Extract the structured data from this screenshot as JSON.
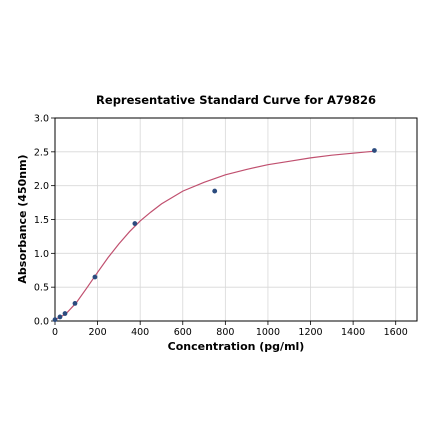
{
  "chart_data": {
    "type": "scatter",
    "title": "Representative Standard Curve for A79826",
    "xlabel": "Concentration (pg/ml)",
    "ylabel": "Absorbance (450nm)",
    "xlim": [
      0,
      1700
    ],
    "ylim": [
      0,
      3.0
    ],
    "xticks": [
      0,
      200,
      400,
      600,
      800,
      1000,
      1200,
      1400,
      1600
    ],
    "yticks": [
      0.0,
      0.5,
      1.0,
      1.5,
      2.0,
      2.5,
      3.0
    ],
    "xtick_labels": [
      "0",
      "200",
      "400",
      "600",
      "800",
      "1000",
      "1200",
      "1400",
      "1600"
    ],
    "ytick_labels": [
      "0.0",
      "0.5",
      "1.0",
      "1.5",
      "2.0",
      "2.5",
      "3.0"
    ],
    "grid": true,
    "series": [
      {
        "kind": "points",
        "color": "#2b4b7e",
        "x": [
          0,
          23.4,
          46.9,
          93.8,
          187.5,
          375,
          750,
          1500
        ],
        "y": [
          0.02,
          0.06,
          0.11,
          0.26,
          0.65,
          1.44,
          1.92,
          2.52
        ]
      },
      {
        "kind": "fit-curve",
        "color": "#c0506f",
        "x": [
          0,
          50,
          100,
          150,
          200,
          250,
          300,
          350,
          400,
          450,
          500,
          600,
          700,
          800,
          900,
          1000,
          1100,
          1200,
          1300,
          1400,
          1500
        ],
        "y": [
          0.02,
          0.1,
          0.27,
          0.49,
          0.72,
          0.94,
          1.14,
          1.32,
          1.48,
          1.61,
          1.73,
          1.92,
          2.05,
          2.16,
          2.24,
          2.31,
          2.36,
          2.41,
          2.45,
          2.48,
          2.51
        ]
      }
    ]
  }
}
